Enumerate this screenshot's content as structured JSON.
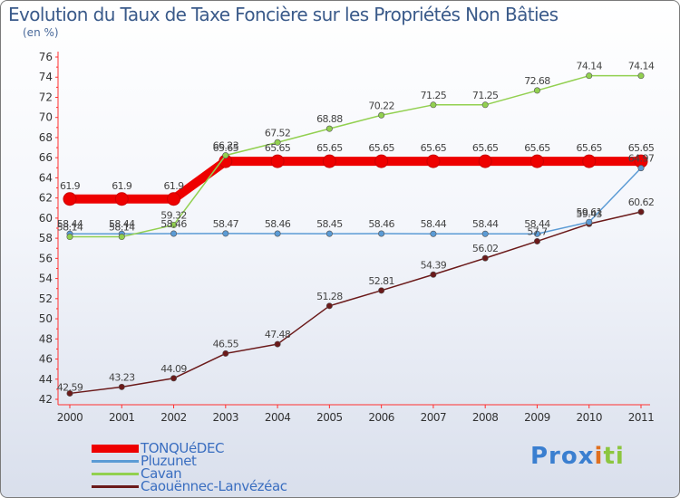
{
  "chart_data": {
    "type": "line",
    "title": "Evolution du Taux de Taxe Foncière sur les Propriétés Non Bâties",
    "subtitle": "(en %)",
    "categories": [
      "2000",
      "2001",
      "2002",
      "2003",
      "2004",
      "2005",
      "2006",
      "2007",
      "2008",
      "2009",
      "2010",
      "2011"
    ],
    "ylim": [
      42,
      76
    ],
    "yticks": [
      "42",
      "44",
      "46",
      "48",
      "50",
      "52",
      "54",
      "56",
      "58",
      "60",
      "62",
      "64",
      "66",
      "68",
      "70",
      "72",
      "74",
      "76"
    ],
    "grid": false,
    "legend_position": "bottom-left",
    "series": [
      {
        "name": "TONQUéDEC",
        "color": "#ee0000",
        "values": [
          61.9,
          61.9,
          61.9,
          65.65,
          65.65,
          65.65,
          65.65,
          65.65,
          65.65,
          65.65,
          65.65,
          65.65
        ],
        "labels": [
          "61.9",
          "61.9",
          "61.9",
          "65.65",
          "65.65",
          "65.65",
          "65.65",
          "65.65",
          "65.65",
          "65.65",
          "65.65",
          "65.65"
        ]
      },
      {
        "name": "Pluzunet",
        "color": "#5b9bd5",
        "values": [
          58.44,
          58.44,
          58.46,
          58.47,
          58.46,
          58.45,
          58.46,
          58.44,
          58.44,
          58.44,
          59.61,
          64.97
        ],
        "labels": [
          "58.44",
          "58.44",
          "58.46",
          "58.47",
          "58.46",
          "58.45",
          "58.46",
          "58.44",
          "58.44",
          "58.44",
          "59.61",
          "64.97"
        ]
      },
      {
        "name": "Cavan",
        "color": "#92d050",
        "values": [
          58.14,
          58.14,
          59.32,
          66.23,
          67.52,
          68.88,
          70.22,
          71.25,
          71.25,
          72.68,
          74.14,
          74.14
        ],
        "labels": [
          "58.14",
          "58.14",
          "59.32",
          "66.23",
          "67.52",
          "68.88",
          "70.22",
          "71.25",
          "71.25",
          "72.68",
          "74.14",
          "74.14"
        ]
      },
      {
        "name": "Caouënnec-Lanvézéac",
        "color": "#6b1a1a",
        "values": [
          42.59,
          43.23,
          44.09,
          46.55,
          47.48,
          51.28,
          52.81,
          54.39,
          56.02,
          57.7,
          59.43,
          60.62
        ],
        "labels": [
          "42.59",
          "43.23",
          "44.09",
          "46.55",
          "47.48",
          "51.28",
          "52.81",
          "54.39",
          "56.02",
          "57.7",
          "59.43",
          "60.62"
        ]
      }
    ]
  },
  "legend": [
    {
      "label": "TONQUéDEC"
    },
    {
      "label": "Pluzunet"
    },
    {
      "label": "Cavan"
    },
    {
      "label": "Caouënnec-Lanvézéac"
    }
  ],
  "logo": {
    "text": "Prox",
    "x_glyph": "i",
    "tail": "ti"
  }
}
